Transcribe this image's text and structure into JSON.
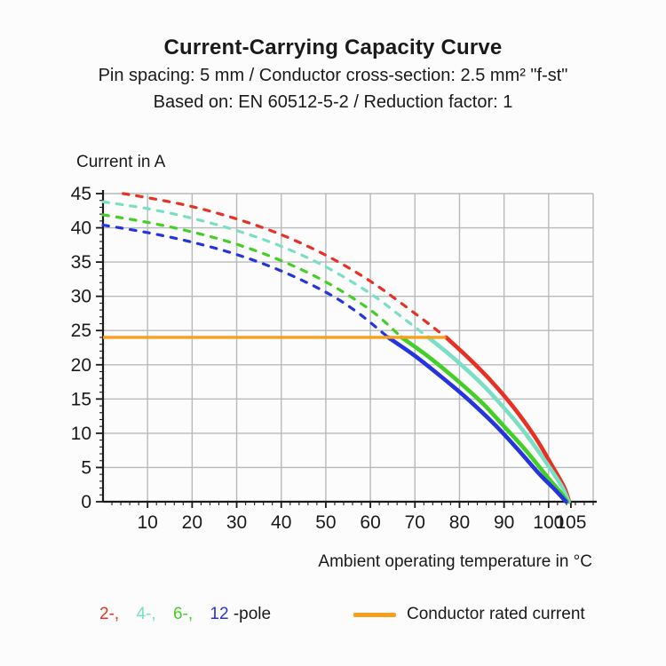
{
  "header": {
    "title": "Current-Carrying Capacity Curve",
    "subtitle1": "Pin spacing: 5 mm / Conductor cross-section: 2.5 mm² \"f-st\"",
    "subtitle2": "Based on: EN 60512-5-2 / Reduction factor: 1"
  },
  "chart_data": {
    "type": "line",
    "title": "Current-Carrying Capacity Curve",
    "ylabel": "Current in A",
    "xlabel": "Ambient operating temperature in °C",
    "xlim": [
      0,
      110
    ],
    "ylim": [
      0,
      45
    ],
    "grid": true,
    "x_major_ticks": [
      10,
      20,
      30,
      40,
      50,
      60,
      70,
      80,
      90,
      100,
      105
    ],
    "x_minor_step": 2,
    "x_gridlines": [
      10,
      20,
      30,
      40,
      50,
      60,
      70,
      80,
      90,
      100,
      110
    ],
    "y_major_ticks": [
      0,
      5,
      10,
      15,
      20,
      25,
      30,
      35,
      40,
      45
    ],
    "y_minor_step": 1,
    "y_gridlines": [
      5,
      10,
      15,
      20,
      25,
      30,
      35,
      40,
      45
    ],
    "colors": {
      "grid": "#b6babd",
      "axis": "#1a1a1a",
      "text": "#1a1a1a"
    },
    "rated_current": {
      "label": "Conductor rated current",
      "value": 24,
      "x_start": 0,
      "x_end": 77,
      "color": "#f6a020"
    },
    "series": [
      {
        "name": "2-pole",
        "color": "#e63124",
        "dashed_points": [
          [
            4.5,
            45
          ],
          [
            10,
            44.4
          ],
          [
            20,
            43.1
          ],
          [
            30,
            41.3
          ],
          [
            40,
            39.0
          ],
          [
            50,
            36.0
          ],
          [
            60,
            32.2
          ],
          [
            70,
            27.5
          ],
          [
            77,
            24
          ]
        ],
        "solid_points": [
          [
            77,
            24
          ],
          [
            82,
            21.0
          ],
          [
            87,
            17.7
          ],
          [
            92,
            13.9
          ],
          [
            97,
            9.4
          ],
          [
            101,
            5.0
          ],
          [
            103.5,
            2.1
          ],
          [
            104.6,
            0
          ]
        ]
      },
      {
        "name": "4-pole",
        "color": "#7adfc4",
        "dashed_points": [
          [
            0,
            43.8
          ],
          [
            10,
            42.8
          ],
          [
            20,
            41.4
          ],
          [
            30,
            39.6
          ],
          [
            40,
            37.3
          ],
          [
            50,
            34.3
          ],
          [
            60,
            30.4
          ],
          [
            67,
            27.0
          ],
          [
            73,
            24
          ]
        ],
        "solid_points": [
          [
            73,
            24
          ],
          [
            79,
            20.8
          ],
          [
            85,
            17.2
          ],
          [
            90,
            13.7
          ],
          [
            95,
            9.8
          ],
          [
            100,
            5.2
          ],
          [
            103,
            2.2
          ],
          [
            104.5,
            0
          ]
        ]
      },
      {
        "name": "6-pole",
        "color": "#44cf26",
        "dashed_points": [
          [
            0,
            41.9
          ],
          [
            10,
            40.8
          ],
          [
            20,
            39.4
          ],
          [
            30,
            37.6
          ],
          [
            40,
            35.2
          ],
          [
            50,
            32.1
          ],
          [
            60,
            28.0
          ],
          [
            67,
            24
          ]
        ],
        "solid_points": [
          [
            67,
            24
          ],
          [
            73,
            21.2
          ],
          [
            79,
            18.0
          ],
          [
            85,
            14.5
          ],
          [
            90,
            11.0
          ],
          [
            95,
            7.4
          ],
          [
            100,
            3.4
          ],
          [
            102.5,
            1.5
          ],
          [
            104.2,
            0
          ]
        ]
      },
      {
        "name": "12-pole",
        "color": "#2634dd",
        "dashed_points": [
          [
            0,
            40.4
          ],
          [
            10,
            39.3
          ],
          [
            20,
            37.9
          ],
          [
            30,
            36.1
          ],
          [
            40,
            33.7
          ],
          [
            50,
            30.6
          ],
          [
            57,
            27.7
          ],
          [
            64,
            24
          ]
        ],
        "solid_points": [
          [
            64,
            24
          ],
          [
            70,
            21.3
          ],
          [
            76,
            18.2
          ],
          [
            82,
            14.9
          ],
          [
            88,
            11.2
          ],
          [
            93,
            7.7
          ],
          [
            98,
            4.0
          ],
          [
            101.5,
            1.7
          ],
          [
            103.9,
            0
          ]
        ]
      }
    ]
  },
  "legend": {
    "pole_items": [
      {
        "label": "2-,",
        "color": "#e63124"
      },
      {
        "label": "4-,",
        "color": "#7adfc4"
      },
      {
        "label": "6-,",
        "color": "#44cf26"
      },
      {
        "label": "12",
        "color": "#2634dd"
      }
    ],
    "pole_suffix": "-pole",
    "rated_label": "Conductor rated current"
  }
}
